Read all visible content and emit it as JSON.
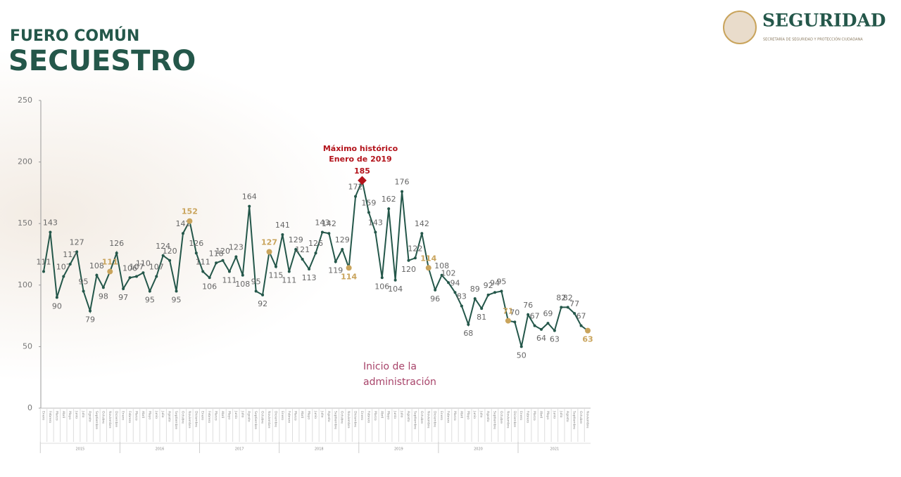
{
  "chart_data": {
    "type": "line",
    "supertitle": "FUERO COMÚN",
    "title": "SECUESTRO",
    "brand": "SEGURIDAD",
    "brand_subtitle": "SECRETARÍA DE SEGURIDAD Y PROTECCIÓN CIUDADANA",
    "ylim": [
      0,
      250
    ],
    "yticks": [
      0,
      50,
      100,
      150,
      200,
      250
    ],
    "categories": [
      "Enero",
      "Febrero",
      "Marzo",
      "Abril",
      "Mayo",
      "Junio",
      "Julio",
      "Agosto",
      "Septiembre",
      "Octubre",
      "Noviembre",
      "Diciembre",
      "Enero",
      "Febrero",
      "Marzo",
      "Abril",
      "Mayo",
      "Junio",
      "Julio",
      "Agosto",
      "Septiembre",
      "Octubre",
      "Noviembre",
      "Diciembre",
      "Enero",
      "Febrero",
      "Marzo",
      "Abril",
      "Mayo",
      "Junio",
      "Julio",
      "Agosto",
      "Septiembre",
      "Octubre",
      "Noviembre",
      "Diciembre",
      "Enero",
      "Febrero",
      "Marzo",
      "Abril",
      "Mayo",
      "Junio",
      "Julio",
      "Agosto",
      "Septiembre",
      "Octubre",
      "Noviembre",
      "Diciembre",
      "Enero",
      "Febrero",
      "Marzo",
      "Abril",
      "Mayo",
      "Junio",
      "Julio",
      "Agosto",
      "Septiembre",
      "Octubre",
      "Noviembre",
      "Diciembre",
      "Enero",
      "Febrero",
      "Marzo",
      "Abril",
      "Mayo",
      "Junio",
      "Julio",
      "Agosto",
      "Septiembre",
      "Octubre",
      "Noviembre",
      "Diciembre",
      "Enero",
      "Febrero",
      "Marzo",
      "Abril",
      "Mayo",
      "Junio",
      "Julio",
      "Agosto",
      "Septiembre",
      "Octubre",
      "Noviembre"
    ],
    "years": [
      "2015",
      "2016",
      "2017",
      "2018",
      "2019",
      "2020",
      "2021"
    ],
    "series": [
      {
        "name": "Secuestro",
        "color": "#24574a",
        "values": [
          111,
          143,
          90,
          107,
          117,
          127,
          95,
          79,
          108,
          98,
          111,
          126,
          97,
          106,
          107,
          110,
          95,
          107,
          124,
          120,
          95,
          142,
          152,
          126,
          111,
          106,
          118,
          120,
          111,
          123,
          108,
          164,
          95,
          92,
          127,
          115,
          141,
          111,
          129,
          121,
          113,
          126,
          143,
          142,
          119,
          129,
          114,
          172,
          185,
          159,
          143,
          106,
          162,
          104,
          176,
          120,
          122,
          142,
          114,
          96,
          108,
          102,
          94,
          83,
          68,
          89,
          81,
          92,
          94,
          95,
          71,
          70,
          50,
          76,
          67,
          64,
          69,
          63,
          82,
          82,
          77,
          67,
          63
        ]
      }
    ],
    "highlight_color": "#c9a45c",
    "highlight_indices": [
      10,
      22,
      34,
      46,
      58,
      70,
      82
    ],
    "max_color": "#b3131b",
    "max_index": 48,
    "annotations": [
      {
        "text": "Máximo histórico",
        "color": "#b3131b"
      },
      {
        "text": "Enero de 2019",
        "color": "#b3131b"
      },
      {
        "text": "Inicio de la",
        "color": "#a8446a"
      },
      {
        "text": "administración",
        "color": "#a8446a"
      }
    ]
  }
}
